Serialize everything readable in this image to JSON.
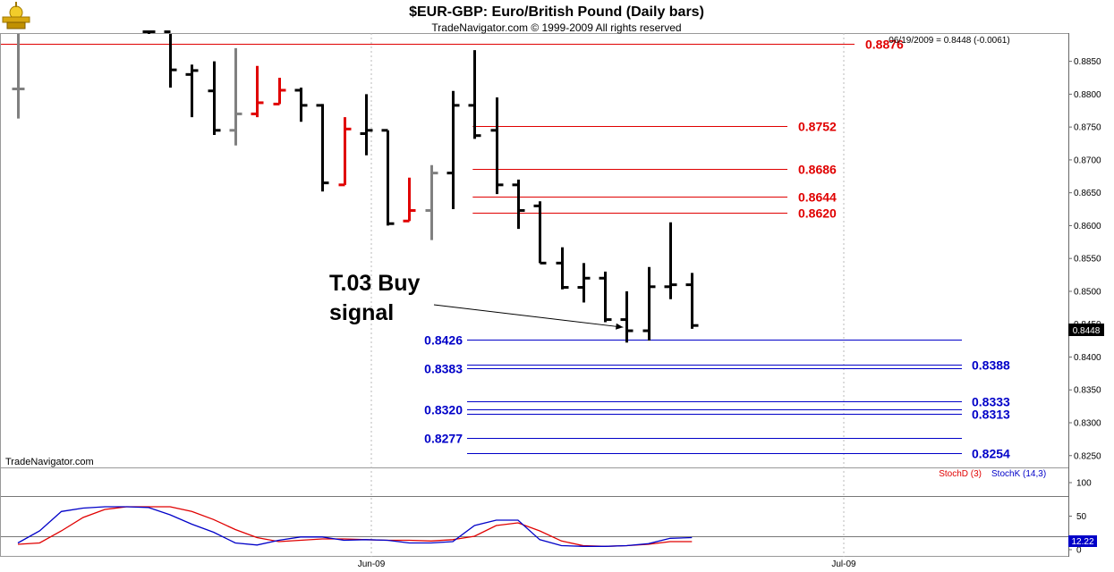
{
  "header": {
    "title": "$EUR-GBP:  Euro/British Pound  (Daily bars)",
    "subtitle": "TradeNavigator.com © 1999-2009 All rights reserved",
    "last_bar_info": "06/19/2009 = 0.8448 (-0.0061)",
    "watermark": "TradeNavigator.com",
    "logo_icon": "trade-navigator-logo-icon"
  },
  "colors": {
    "bar_up": "#000000",
    "bar_red": "#e00000",
    "bar_gray": "#808080",
    "resistance": "#e00000",
    "support": "#0000c8",
    "stoch_d": "#e00000",
    "stoch_k": "#0000c8"
  },
  "annotation": {
    "line1": "T.03 Buy",
    "line2": "signal"
  },
  "chart_data": [
    {
      "type": "ohlc",
      "ylim": [
        0.8232,
        0.8893
      ],
      "yticks": [
        0.885,
        0.88,
        0.875,
        0.87,
        0.865,
        0.86,
        0.855,
        0.85,
        0.845,
        0.84,
        0.835,
        0.83,
        0.825
      ],
      "ytick_labels": [
        "0.8850",
        "0.8800",
        "0.8750",
        "0.8700",
        "0.8650",
        "0.8600",
        "0.8550",
        "0.8500",
        "0.8450",
        "0.8400",
        "0.8350",
        "0.8300",
        "0.8250"
      ],
      "x_labels": [
        "Jun-09",
        "Jul-09"
      ],
      "grid": "vertical dotted at month starts",
      "last_price_label": "0.8448",
      "bars": [
        {
          "slot": 0,
          "color": "gray",
          "open": 0.8808,
          "high": 0.8895,
          "low": 0.8763,
          "close": 0.8808
        },
        {
          "slot": 6,
          "color": "black",
          "open": 0.8895,
          "high": 0.8895,
          "low": 0.8893,
          "close": 0.8895
        },
        {
          "slot": 7,
          "color": "black",
          "open": 0.8895,
          "high": 0.8895,
          "low": 0.881,
          "close": 0.8837
        },
        {
          "slot": 8,
          "color": "black",
          "open": 0.883,
          "high": 0.8845,
          "low": 0.8765,
          "close": 0.8836
        },
        {
          "slot": 9,
          "color": "black",
          "open": 0.8805,
          "high": 0.885,
          "low": 0.8738,
          "close": 0.8745
        },
        {
          "slot": 10,
          "color": "gray",
          "open": 0.8745,
          "high": 0.887,
          "low": 0.8722,
          "close": 0.877
        },
        {
          "slot": 11,
          "color": "red",
          "open": 0.877,
          "high": 0.8843,
          "low": 0.8765,
          "close": 0.8787
        },
        {
          "slot": 12,
          "color": "red",
          "open": 0.8785,
          "high": 0.8825,
          "low": 0.8785,
          "close": 0.8806
        },
        {
          "slot": 13,
          "color": "black",
          "open": 0.8806,
          "high": 0.881,
          "low": 0.8758,
          "close": 0.8783
        },
        {
          "slot": 14,
          "color": "black",
          "open": 0.8783,
          "high": 0.8785,
          "low": 0.8652,
          "close": 0.8665
        },
        {
          "slot": 15,
          "color": "red",
          "open": 0.8662,
          "high": 0.8765,
          "low": 0.8662,
          "close": 0.8747
        },
        {
          "slot": 16,
          "color": "black",
          "open": 0.874,
          "high": 0.88,
          "low": 0.8707,
          "close": 0.8745
        },
        {
          "slot": 17,
          "color": "black",
          "open": 0.8745,
          "high": 0.8745,
          "low": 0.86,
          "close": 0.8603
        },
        {
          "slot": 18,
          "color": "red",
          "open": 0.8607,
          "high": 0.8673,
          "low": 0.8607,
          "close": 0.8623
        },
        {
          "slot": 19,
          "color": "gray",
          "open": 0.8623,
          "high": 0.8692,
          "low": 0.8578,
          "close": 0.868
        },
        {
          "slot": 20,
          "color": "black",
          "open": 0.868,
          "high": 0.8805,
          "low": 0.8625,
          "close": 0.8783
        },
        {
          "slot": 21,
          "color": "black",
          "open": 0.8783,
          "high": 0.8867,
          "low": 0.8732,
          "close": 0.8737
        },
        {
          "slot": 22,
          "color": "black",
          "open": 0.8745,
          "high": 0.8795,
          "low": 0.8648,
          "close": 0.8662
        },
        {
          "slot": 23,
          "color": "black",
          "open": 0.8662,
          "high": 0.867,
          "low": 0.8595,
          "close": 0.8623
        },
        {
          "slot": 24,
          "color": "black",
          "open": 0.863,
          "high": 0.8637,
          "low": 0.8543,
          "close": 0.8543
        },
        {
          "slot": 25,
          "color": "black",
          "open": 0.8543,
          "high": 0.8567,
          "low": 0.8503,
          "close": 0.8506
        },
        {
          "slot": 26,
          "color": "black",
          "open": 0.8506,
          "high": 0.8543,
          "low": 0.8483,
          "close": 0.852
        },
        {
          "slot": 27,
          "color": "black",
          "open": 0.852,
          "high": 0.853,
          "low": 0.8453,
          "close": 0.8457
        },
        {
          "slot": 28,
          "color": "black",
          "open": 0.8457,
          "high": 0.85,
          "low": 0.8422,
          "close": 0.844
        },
        {
          "slot": 29,
          "color": "black",
          "open": 0.844,
          "high": 0.8537,
          "low": 0.8425,
          "close": 0.8507
        },
        {
          "slot": 30,
          "color": "black",
          "open": 0.8507,
          "high": 0.8605,
          "low": 0.8488,
          "close": 0.851
        },
        {
          "slot": 31,
          "color": "black",
          "open": 0.851,
          "high": 0.8528,
          "low": 0.8443,
          "close": 0.8448
        }
      ],
      "resistance_levels": [
        {
          "value": 0.8876,
          "label": "0.8876",
          "from_slot": 0
        },
        {
          "value": 0.8752,
          "label": "0.8752",
          "from_slot": 21
        },
        {
          "value": 0.8686,
          "label": "0.8686",
          "from_slot": 21
        },
        {
          "value": 0.8644,
          "label": "0.8644",
          "from_slot": 21
        },
        {
          "value": 0.862,
          "label": "0.8620",
          "from_slot": 21
        }
      ],
      "support_levels": [
        {
          "value": 0.8426,
          "label": "0.8426",
          "label_side": "left"
        },
        {
          "value": 0.8388,
          "label": "0.8388",
          "label_side": "right"
        },
        {
          "value": 0.8383,
          "label": "0.8383",
          "label_side": "left"
        },
        {
          "value": 0.8333,
          "label": "0.8333",
          "label_side": "right"
        },
        {
          "value": 0.832,
          "label": "0.8320",
          "label_side": "left"
        },
        {
          "value": 0.8313,
          "label": "0.8313",
          "label_side": "right"
        },
        {
          "value": 0.8277,
          "label": "0.8277",
          "label_side": "left"
        },
        {
          "value": 0.8254,
          "label": "0.8254",
          "label_side": "right"
        }
      ],
      "annotation_target": {
        "slot": 28,
        "value": 0.8448
      }
    },
    {
      "type": "line",
      "ylim": [
        0,
        100
      ],
      "yticks": [
        100,
        50,
        0
      ],
      "ytick_labels": [
        "100",
        "50",
        "0"
      ],
      "reference_lines": [
        80,
        20
      ],
      "last_value_label": "12.22",
      "series": [
        {
          "name": "StochD (3)",
          "color": "#e00000",
          "values": [
            8,
            10,
            28,
            48,
            60,
            64,
            64,
            64,
            57,
            45,
            30,
            18,
            12,
            14,
            16,
            16,
            15,
            14,
            14,
            13,
            15,
            20,
            36,
            40,
            28,
            13,
            6,
            5,
            6,
            8,
            12,
            12
          ]
        },
        {
          "name": "StochK (14,3)",
          "color": "#0000c8",
          "values": [
            10,
            28,
            57,
            62,
            64,
            64,
            63,
            52,
            38,
            26,
            10,
            7,
            14,
            19,
            19,
            14,
            15,
            14,
            10,
            10,
            12,
            36,
            44,
            44,
            15,
            6,
            5,
            5,
            6,
            9,
            17,
            18
          ]
        }
      ]
    }
  ]
}
